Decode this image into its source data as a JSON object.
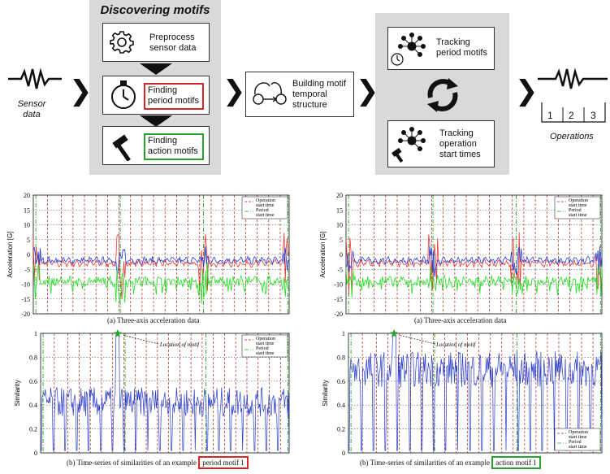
{
  "pipeline": {
    "sensor_label": "Sensor\ndata",
    "discover_title": "Discovering motifs",
    "preprocess": "Preprocess\nsensor data",
    "finding_period": "Finding\nperiod motifs",
    "finding_action": "Finding\naction motifs",
    "building": "Building motif\ntemporal\nstructure",
    "tracking_period": "Tracking\nperiod motifs",
    "tracking_operation": "Tracking\noperation\nstart times",
    "ops_numbers": [
      "1",
      "2",
      "3"
    ],
    "ops_label": "Operations"
  },
  "colors": {
    "highlight_period": "#d62728",
    "highlight_action": "#2ca02c",
    "panel_gray": "#d9d9d9"
  },
  "chart_data": [
    {
      "type": "line",
      "title": "(a) Three-axis acceleration data",
      "ylabel": "Acceleration [G]",
      "ylim": [
        -20,
        20
      ],
      "yticks": [
        -20,
        -15,
        -10,
        -5,
        0,
        5,
        10,
        15,
        20
      ],
      "grid": true,
      "legend": [
        "Operation\nstart time",
        "Period\nstart time"
      ],
      "legend_position": "top-right",
      "series": [
        {
          "color": "#e53935",
          "approx_level": -3
        },
        {
          "color": "#1e3fe0",
          "approx_level": -2
        },
        {
          "color": "#22dd22",
          "approx_level": -9
        }
      ]
    },
    {
      "type": "line",
      "title": "(a) Three-axis acceleration data",
      "ylabel": "Acceleration [G]",
      "ylim": [
        -20,
        20
      ],
      "yticks": [
        -20,
        -15,
        -10,
        -5,
        0,
        5,
        10,
        15,
        20
      ],
      "grid": true,
      "legend": [
        "Operation\nstart time",
        "Period\nstart time"
      ],
      "legend_position": "top-right",
      "series": [
        {
          "color": "#e53935",
          "approx_level": -3
        },
        {
          "color": "#1e3fe0",
          "approx_level": -2
        },
        {
          "color": "#22dd22",
          "approx_level": -9
        }
      ]
    },
    {
      "type": "line",
      "title_prefix": "(b) Time-series of similarities of an example ",
      "title_highlight": "period motif 1",
      "ylabel": "Similarity",
      "ylim": [
        0,
        1
      ],
      "yticks": [
        0,
        0.2,
        0.4,
        0.6,
        0.8,
        1
      ],
      "annotation": "Location of motif",
      "legend": [
        "Operation\nstart time",
        "Period\nstart time"
      ],
      "legend_position": "top-right",
      "series": [
        {
          "color": "#2a3cc9"
        }
      ]
    },
    {
      "type": "line",
      "title_prefix": "(b) Time-series of similarities of an example ",
      "title_highlight": "action motif 1",
      "ylabel": "Similarity",
      "ylim": [
        0,
        1
      ],
      "yticks": [
        0,
        0.2,
        0.4,
        0.6,
        0.8,
        1
      ],
      "annotation": "Location of motif",
      "legend": [
        "Operation\nstart time",
        "Period\nstart time"
      ],
      "legend_position": "bottom-right",
      "series": [
        {
          "color": "#2a3cc9"
        }
      ]
    }
  ]
}
